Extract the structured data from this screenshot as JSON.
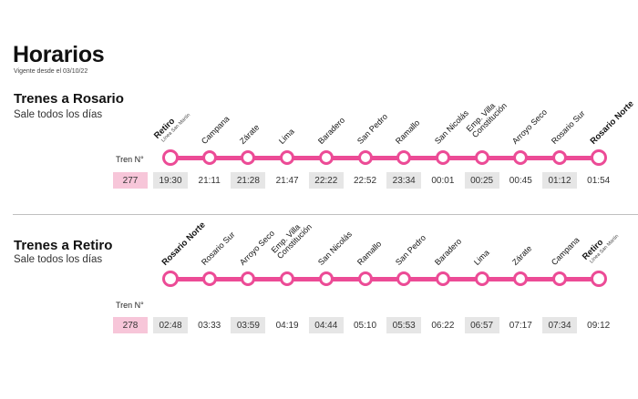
{
  "page": {
    "title": "Horarios",
    "valid_from": "Vigente desde el 03/10/22"
  },
  "colors": {
    "line": "#ec4b96",
    "train_number_bg": "#f7c6d9",
    "time_shade": "#e6e6e6"
  },
  "sections": [
    {
      "title": "Trenes a Rosario",
      "subtitle": "Sale todos los días",
      "train_label": "Tren N°",
      "train_number": "277",
      "stations": [
        {
          "name": "Retiro",
          "sub": "Línea San Martín",
          "time": "19:30"
        },
        {
          "name": "Campana",
          "time": "21:11"
        },
        {
          "name": "Zárate",
          "time": "21:28"
        },
        {
          "name": "Lima",
          "time": "21:47"
        },
        {
          "name": "Baradero",
          "time": "22:22"
        },
        {
          "name": "San Pedro",
          "time": "22:52"
        },
        {
          "name": "Ramallo",
          "time": "23:34"
        },
        {
          "name": "San Nicolás",
          "time": "00:01"
        },
        {
          "name": "Emp. Villa",
          "name2": "Constitución",
          "time": "00:25"
        },
        {
          "name": "Arroyo Seco",
          "time": "00:45"
        },
        {
          "name": "Rosario Sur",
          "time": "01:12"
        },
        {
          "name": "Rosario Norte",
          "time": "01:54"
        }
      ]
    },
    {
      "title": "Trenes a Retiro",
      "subtitle": "Sale todos los días",
      "train_label": "Tren N°",
      "train_number": "278",
      "stations": [
        {
          "name": "Rosario Norte",
          "time": "02:48"
        },
        {
          "name": "Rosario Sur",
          "time": "03:33"
        },
        {
          "name": "Arroyo Seco",
          "time": "03:59"
        },
        {
          "name": "Emp. Villa",
          "name2": "Constitución",
          "time": "04:19"
        },
        {
          "name": "San Nicolás",
          "time": "04:44"
        },
        {
          "name": "Ramallo",
          "time": "05:10"
        },
        {
          "name": "San Pedro",
          "time": "05:53"
        },
        {
          "name": "Baradero",
          "time": "06:22"
        },
        {
          "name": "Lima",
          "time": "06:57"
        },
        {
          "name": "Zárate",
          "time": "07:17"
        },
        {
          "name": "Campana",
          "time": "07:34"
        },
        {
          "name": "Retiro",
          "sub": "Línea San Martín",
          "time": "09:12"
        }
      ]
    }
  ]
}
